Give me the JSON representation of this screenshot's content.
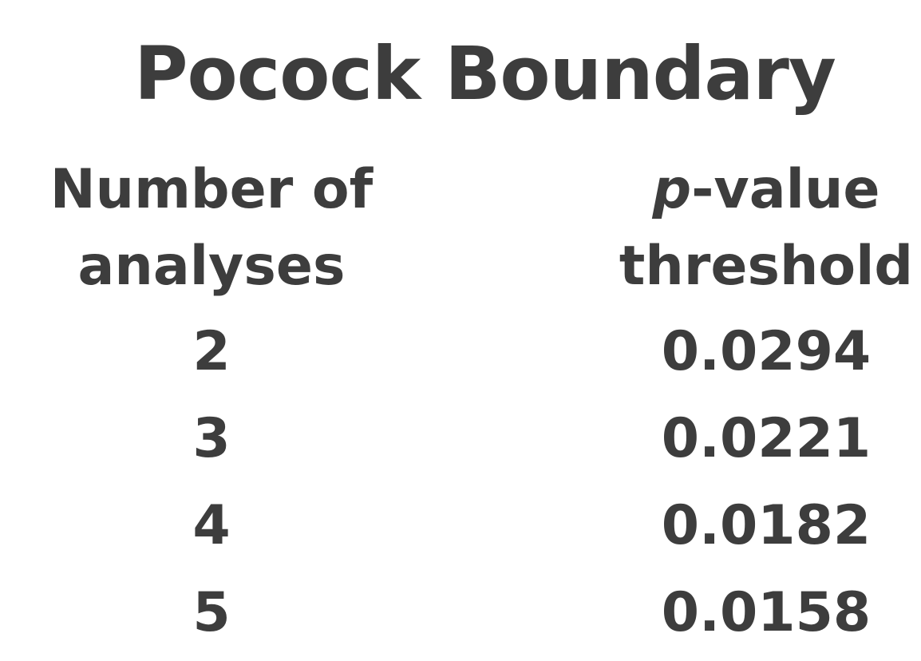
{
  "title": "Pocock Boundary",
  "table": {
    "headers": {
      "left_line1": "Number of",
      "left_line2": "analyses",
      "right_line1_prefix": "p",
      "right_line1_suffix": "-value",
      "right_line2": "threshold"
    },
    "rows": [
      {
        "analyses": "2",
        "threshold": "0.0294"
      },
      {
        "analyses": "3",
        "threshold": "0.0221"
      },
      {
        "analyses": "4",
        "threshold": "0.0182"
      },
      {
        "analyses": "5",
        "threshold": "0.0158"
      }
    ]
  }
}
